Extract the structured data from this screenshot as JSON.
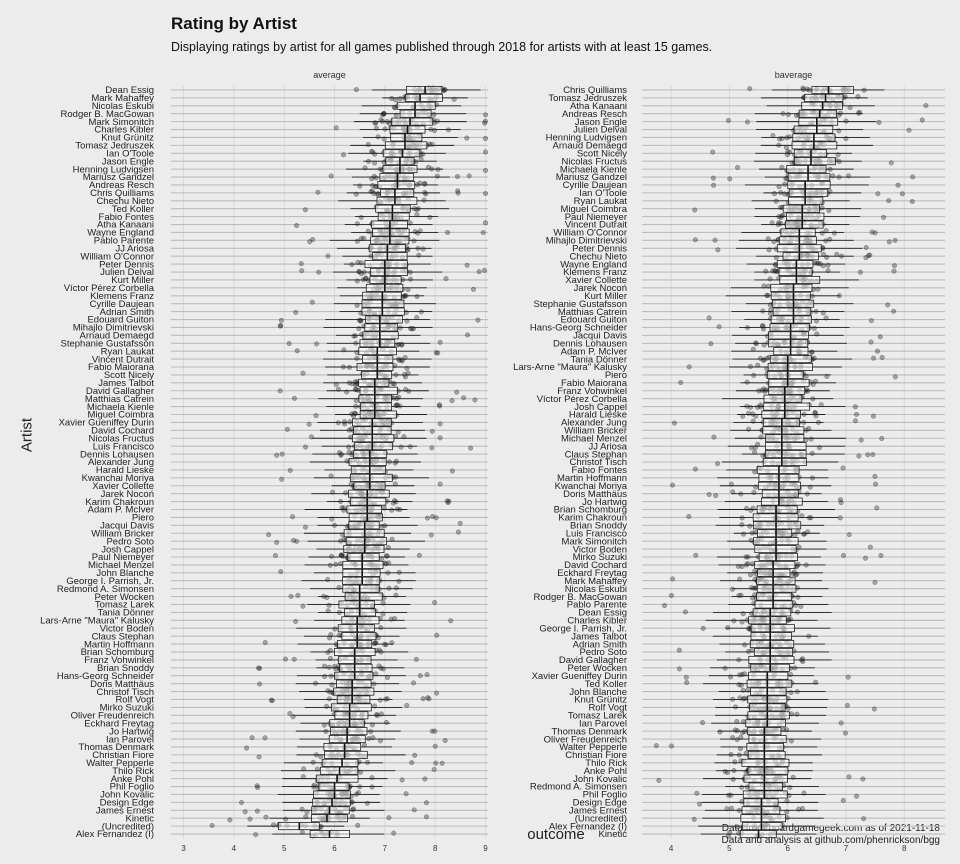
{
  "title": "Rating by Artist",
  "subtitle": "Displaying ratings by artist for all games published through 2018 for artists with at least 15 games.",
  "caption": [
    "Data from boardgamegeek.com as of 2021-11-18",
    "Data and analysis at github.com/phenrickson/bgg"
  ],
  "chart_data": [
    {
      "type": "boxplot",
      "facet": "average",
      "xlabel": "outcome",
      "ylabel": "Artist",
      "xlim": [
        2.75,
        9.05
      ],
      "xticks": [
        3,
        4,
        5,
        6,
        7,
        8,
        9
      ],
      "grid": true,
      "artists": [
        {
          "name": "Dean Essig",
          "median": 7.8
        },
        {
          "name": "Mark Mahaffey",
          "median": 7.7
        },
        {
          "name": "Nicolas Eskubi",
          "median": 7.6
        },
        {
          "name": "Rodger B. MacGowan",
          "median": 7.6
        },
        {
          "name": "Mark Simonitch",
          "median": 7.5
        },
        {
          "name": "Charles Kibler",
          "median": 7.45
        },
        {
          "name": "Knut Grünitz",
          "median": 7.4
        },
        {
          "name": "Tomasz Jedruszek",
          "median": 7.4
        },
        {
          "name": "Ian O'Toole",
          "median": 7.35
        },
        {
          "name": "Jason Engle",
          "median": 7.3
        },
        {
          "name": "Henning Ludvigsen",
          "median": 7.3
        },
        {
          "name": "Mariusz Gandzel",
          "median": 7.25
        },
        {
          "name": "Andreas Resch",
          "median": 7.25
        },
        {
          "name": "Chris Quilliams",
          "median": 7.2
        },
        {
          "name": "Chechu Nieto",
          "median": 7.2
        },
        {
          "name": "Ted Koller",
          "median": 7.15
        },
        {
          "name": "Fabio Fontes",
          "median": 7.15
        },
        {
          "name": "Atha Kanaani",
          "median": 7.1
        },
        {
          "name": "Wayne England",
          "median": 7.1
        },
        {
          "name": "Pablo Parente",
          "median": 7.1
        },
        {
          "name": "JJ Ariosa",
          "median": 7.05
        },
        {
          "name": "William O'Connor",
          "median": 7.05
        },
        {
          "name": "Peter Dennis",
          "median": 7.0
        },
        {
          "name": "Julien Delval",
          "median": 7.0
        },
        {
          "name": "Kurt Miller",
          "median": 7.0
        },
        {
          "name": "Víctor Pérez Corbella",
          "median": 7.0
        },
        {
          "name": "Klemens Franz",
          "median": 6.95
        },
        {
          "name": "Cyrille Daujean",
          "median": 6.95
        },
        {
          "name": "Adrian Smith",
          "median": 6.95
        },
        {
          "name": "Edouard Guiton",
          "median": 6.9
        },
        {
          "name": "Mihajlo Dimitrievski",
          "median": 6.9
        },
        {
          "name": "Arnaud Demaegd",
          "median": 6.9
        },
        {
          "name": "Stephanie Gustafsson",
          "median": 6.9
        },
        {
          "name": "Ryan Laukat",
          "median": 6.85
        },
        {
          "name": "Vincent Dutrait",
          "median": 6.85
        },
        {
          "name": "Fabio Maiorana",
          "median": 6.85
        },
        {
          "name": "Scott Nicely",
          "median": 6.85
        },
        {
          "name": "James Talbot",
          "median": 6.8
        },
        {
          "name": "David Gallagher",
          "median": 6.8
        },
        {
          "name": "Matthias Catrein",
          "median": 6.8
        },
        {
          "name": "Michaela Kienle",
          "median": 6.8
        },
        {
          "name": "Miguel Coimbra",
          "median": 6.8
        },
        {
          "name": "Xavier Gueniffey Durin",
          "median": 6.75
        },
        {
          "name": "David Cochard",
          "median": 6.75
        },
        {
          "name": "Nicolas Fructus",
          "median": 6.75
        },
        {
          "name": "Luis Francisco",
          "median": 6.75
        },
        {
          "name": "Dennis Lohausen",
          "median": 6.7
        },
        {
          "name": "Alexander Jung",
          "median": 6.7
        },
        {
          "name": "Harald Lieske",
          "median": 6.7
        },
        {
          "name": "Kwanchai Moriya",
          "median": 6.7
        },
        {
          "name": "Xavier Collette",
          "median": 6.7
        },
        {
          "name": "Jarek Nocoń",
          "median": 6.65
        },
        {
          "name": "Karim Chakroun",
          "median": 6.65
        },
        {
          "name": "Adam P. McIver",
          "median": 6.65
        },
        {
          "name": "Piero",
          "median": 6.65
        },
        {
          "name": "Jacqui Davis",
          "median": 6.6
        },
        {
          "name": "William Bricker",
          "median": 6.6
        },
        {
          "name": "Pedro Soto",
          "median": 6.6
        },
        {
          "name": "Josh Cappel",
          "median": 6.6
        },
        {
          "name": "Paul Niemeyer",
          "median": 6.55
        },
        {
          "name": "Michael Menzel",
          "median": 6.55
        },
        {
          "name": "John Blanche",
          "median": 6.55
        },
        {
          "name": "George I. Parrish, Jr.",
          "median": 6.55
        },
        {
          "name": "Redmond A. Simonsen",
          "median": 6.5
        },
        {
          "name": "Peter Wocken",
          "median": 6.5
        },
        {
          "name": "Tomasz Larek",
          "median": 6.5
        },
        {
          "name": "Tania Dönner",
          "median": 6.5
        },
        {
          "name": "Lars-Arne \"Maura\" Kalusky",
          "median": 6.45
        },
        {
          "name": "Victor Boden",
          "median": 6.45
        },
        {
          "name": "Claus Stephan",
          "median": 6.45
        },
        {
          "name": "Martin Hoffmann",
          "median": 6.45
        },
        {
          "name": "Brian Schomburg",
          "median": 6.4
        },
        {
          "name": "Franz Vohwinkel",
          "median": 6.4
        },
        {
          "name": "Brian Snoddy",
          "median": 6.4
        },
        {
          "name": "Hans-Georg Schneider",
          "median": 6.4
        },
        {
          "name": "Doris Matthäus",
          "median": 6.35
        },
        {
          "name": "Christof Tisch",
          "median": 6.35
        },
        {
          "name": "Rolf Vogt",
          "median": 6.35
        },
        {
          "name": "Mirko Suzuki",
          "median": 6.3
        },
        {
          "name": "Oliver Freudenreich",
          "median": 6.3
        },
        {
          "name": "Eckhard Freytag",
          "median": 6.3
        },
        {
          "name": "Jo Hartwig",
          "median": 6.25
        },
        {
          "name": "Ian Parovel",
          "median": 6.25
        },
        {
          "name": "Thomas Denmark",
          "median": 6.2
        },
        {
          "name": "Christian Fiore",
          "median": 6.2
        },
        {
          "name": "Walter Pepperle",
          "median": 6.15
        },
        {
          "name": "Thilo Rick",
          "median": 6.1
        },
        {
          "name": "Anke Pohl",
          "median": 6.05
        },
        {
          "name": "Phil Foglio",
          "median": 6.0
        },
        {
          "name": "John Kovalic",
          "median": 6.0
        },
        {
          "name": "Design Edge",
          "median": 5.95
        },
        {
          "name": "James Ernest",
          "median": 5.9
        },
        {
          "name": "Kinetic",
          "median": 5.85
        },
        {
          "name": "(Uncredited)",
          "median": 5.3
        },
        {
          "name": "Alex Fernandez (I)",
          "median": 5.9
        }
      ]
    },
    {
      "type": "boxplot",
      "facet": "baverage",
      "xlabel": "outcome",
      "ylabel": "Artist",
      "xlim": [
        3.5,
        8.7
      ],
      "xticks": [
        4,
        5,
        6,
        7,
        8
      ],
      "grid": true,
      "artists": [
        {
          "name": "Chris Quilliams",
          "median": 6.7
        },
        {
          "name": "Tomasz Jedruszek",
          "median": 6.65
        },
        {
          "name": "Atha Kanaani",
          "median": 6.6
        },
        {
          "name": "Andreas Resch",
          "median": 6.55
        },
        {
          "name": "Jason Engle",
          "median": 6.5
        },
        {
          "name": "Julien Delval",
          "median": 6.5
        },
        {
          "name": "Henning Ludvigsen",
          "median": 6.45
        },
        {
          "name": "Arnaud Demaegd",
          "median": 6.45
        },
        {
          "name": "Scott Nicely",
          "median": 6.4
        },
        {
          "name": "Nicolas Fructus",
          "median": 6.4
        },
        {
          "name": "Michaela Kienle",
          "median": 6.35
        },
        {
          "name": "Mariusz Gandzel",
          "median": 6.35
        },
        {
          "name": "Cyrille Daujean",
          "median": 6.3
        },
        {
          "name": "Ian O'Toole",
          "median": 6.3
        },
        {
          "name": "Ryan Laukat",
          "median": 6.3
        },
        {
          "name": "Miguel Coimbra",
          "median": 6.25
        },
        {
          "name": "Paul Niemeyer",
          "median": 6.25
        },
        {
          "name": "Vincent Dutrait",
          "median": 6.25
        },
        {
          "name": "William O'Connor",
          "median": 6.2
        },
        {
          "name": "Mihajlo Dimitrievski",
          "median": 6.2
        },
        {
          "name": "Peter Dennis",
          "median": 6.2
        },
        {
          "name": "Chechu Nieto",
          "median": 6.2
        },
        {
          "name": "Wayne England",
          "median": 6.15
        },
        {
          "name": "Klemens Franz",
          "median": 6.15
        },
        {
          "name": "Xavier Collette",
          "median": 6.15
        },
        {
          "name": "Jarek Nocoń",
          "median": 6.1
        },
        {
          "name": "Kurt Miller",
          "median": 6.1
        },
        {
          "name": "Stephanie Gustafsson",
          "median": 6.1
        },
        {
          "name": "Matthias Catrein",
          "median": 6.1
        },
        {
          "name": "Edouard Guiton",
          "median": 6.1
        },
        {
          "name": "Hans-Georg Schneider",
          "median": 6.05
        },
        {
          "name": "Jacqui Davis",
          "median": 6.05
        },
        {
          "name": "Dennis Lohausen",
          "median": 6.05
        },
        {
          "name": "Adam P. McIver",
          "median": 6.05
        },
        {
          "name": "Tania Dönner",
          "median": 6.0
        },
        {
          "name": "Lars-Arne \"Maura\" Kalusky",
          "median": 6.0
        },
        {
          "name": "Piero",
          "median": 6.0
        },
        {
          "name": "Fabio Maiorana",
          "median": 6.0
        },
        {
          "name": "Franz Vohwinkel",
          "median": 5.95
        },
        {
          "name": "Víctor Pérez Corbella",
          "median": 5.95
        },
        {
          "name": "Josh Cappel",
          "median": 5.95
        },
        {
          "name": "Harald Lieske",
          "median": 5.95
        },
        {
          "name": "Alexander Jung",
          "median": 5.9
        },
        {
          "name": "William Bricker",
          "median": 5.9
        },
        {
          "name": "Michael Menzel",
          "median": 5.9
        },
        {
          "name": "JJ Ariosa",
          "median": 5.9
        },
        {
          "name": "Claus Stephan",
          "median": 5.9
        },
        {
          "name": "Christof Tisch",
          "median": 5.9
        },
        {
          "name": "Fabio Fontes",
          "median": 5.85
        },
        {
          "name": "Martin Hoffmann",
          "median": 5.85
        },
        {
          "name": "Kwanchai Moriya",
          "median": 5.85
        },
        {
          "name": "Doris Matthäus",
          "median": 5.85
        },
        {
          "name": "Jo Hartwig",
          "median": 5.85
        },
        {
          "name": "Brian Schomburg",
          "median": 5.8
        },
        {
          "name": "Karim Chakroun",
          "median": 5.8
        },
        {
          "name": "Brian Snoddy",
          "median": 5.8
        },
        {
          "name": "Luis Francisco",
          "median": 5.8
        },
        {
          "name": "Mark Simonitch",
          "median": 5.8
        },
        {
          "name": "Victor Boden",
          "median": 5.8
        },
        {
          "name": "Mirko Suzuki",
          "median": 5.8
        },
        {
          "name": "David Cochard",
          "median": 5.75
        },
        {
          "name": "Eckhard Freytag",
          "median": 5.75
        },
        {
          "name": "Mark Mahaffey",
          "median": 5.75
        },
        {
          "name": "Nicolas Eskubi",
          "median": 5.75
        },
        {
          "name": "Rodger B. MacGowan",
          "median": 5.75
        },
        {
          "name": "Pablo Parente",
          "median": 5.75
        },
        {
          "name": "Dean Essig",
          "median": 5.7
        },
        {
          "name": "Charles Kibler",
          "median": 5.7
        },
        {
          "name": "George I. Parrish, Jr.",
          "median": 5.7
        },
        {
          "name": "James Talbot",
          "median": 5.7
        },
        {
          "name": "Adrian Smith",
          "median": 5.7
        },
        {
          "name": "Pedro Soto",
          "median": 5.7
        },
        {
          "name": "David Gallagher",
          "median": 5.7
        },
        {
          "name": "Peter Wocken",
          "median": 5.7
        },
        {
          "name": "Xavier Gueniffey Durin",
          "median": 5.65
        },
        {
          "name": "Ted Koller",
          "median": 5.65
        },
        {
          "name": "John Blanche",
          "median": 5.65
        },
        {
          "name": "Knut Grünitz",
          "median": 5.65
        },
        {
          "name": "Rolf Vogt",
          "median": 5.65
        },
        {
          "name": "Tomasz Larek",
          "median": 5.65
        },
        {
          "name": "Ian Parovel",
          "median": 5.65
        },
        {
          "name": "Thomas Denmark",
          "median": 5.6
        },
        {
          "name": "Oliver Freudenreich",
          "median": 5.6
        },
        {
          "name": "Walter Pepperle",
          "median": 5.6
        },
        {
          "name": "Christian Fiore",
          "median": 5.6
        },
        {
          "name": "Thilo Rick",
          "median": 5.6
        },
        {
          "name": "Anke Pohl",
          "median": 5.6
        },
        {
          "name": "John Kovalic",
          "median": 5.6
        },
        {
          "name": "Redmond A. Simonsen",
          "median": 5.6
        },
        {
          "name": "Phil Foglio",
          "median": 5.6
        },
        {
          "name": "Design Edge",
          "median": 5.55
        },
        {
          "name": "James Ernest",
          "median": 5.55
        },
        {
          "name": "(Uncredited)",
          "median": 5.55
        },
        {
          "name": "Alex Fernandez (I)",
          "median": 5.55
        },
        {
          "name": "Kinetic",
          "median": 5.5
        }
      ]
    }
  ]
}
